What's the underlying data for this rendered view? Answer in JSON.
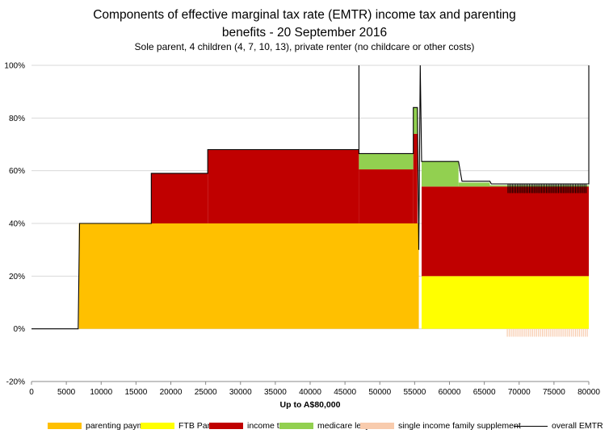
{
  "chart_data": {
    "type": "area",
    "title_line1": "Components of effective marginal tax rate (EMTR) income tax and parenting",
    "title_line2": "benefits - 20 September 2016",
    "subtitle": "Sole parent, 4 children (4, 7, 10, 13), private renter (no childcare or other costs)",
    "xlabel": "Up to A$80,000",
    "ylabel": "",
    "xlim": [
      0,
      80000
    ],
    "ylim": [
      -20,
      100
    ],
    "x_ticks": [
      "0",
      "5000",
      "10000",
      "15000",
      "20000",
      "25000",
      "30000",
      "35000",
      "40000",
      "45000",
      "50000",
      "55000",
      "60000",
      "65000",
      "70000",
      "75000",
      "80000"
    ],
    "y_ticks": [
      "-20%",
      "0%",
      "20%",
      "40%",
      "60%",
      "80%",
      "100%"
    ],
    "y_tick_values": [
      -20,
      0,
      20,
      40,
      60,
      80,
      100
    ],
    "gridlines": "horizontal",
    "legend_position": "bottom",
    "series": [
      {
        "name": "parenting payment",
        "color": "#FFC000",
        "segments": [
          {
            "x": [
              6800,
              55600
            ],
            "values": [
              40,
              40
            ]
          }
        ]
      },
      {
        "name": "FTB Part A",
        "color": "#FFFF00",
        "segments": [
          {
            "x": [
              56000,
              80000
            ],
            "values": [
              20,
              20
            ]
          }
        ]
      },
      {
        "name": "income tax",
        "color": "#C00000",
        "segments": [
          {
            "x": [
              17200,
              25300
            ],
            "values": [
              19,
              19
            ]
          },
          {
            "x": [
              25300,
              47000
            ],
            "values": [
              28,
              28
            ]
          },
          {
            "x": [
              47000,
              54800
            ],
            "values": [
              20.5,
              20.5
            ]
          },
          {
            "x": [
              54800,
              55400
            ],
            "values": [
              34,
              34
            ]
          },
          {
            "x": [
              56000,
              80000
            ],
            "values": [
              34,
              34
            ]
          }
        ]
      },
      {
        "name": "medicare levy",
        "color": "#92D050",
        "segments": [
          {
            "x": [
              47000,
              54800
            ],
            "values": [
              6,
              6
            ]
          },
          {
            "x": [
              54800,
              55400
            ],
            "values": [
              10,
              10
            ]
          },
          {
            "x": [
              56000,
              61300
            ],
            "values": [
              9.5,
              9.5
            ]
          },
          {
            "x": [
              61300,
              65800
            ],
            "values": [
              1.5,
              1.5
            ]
          },
          {
            "x": [
              65800,
              80000
            ],
            "values": [
              0.5,
              0.5
            ]
          }
        ]
      },
      {
        "name": "single income family supplement",
        "color": "#F8CBAD",
        "segments": [
          {
            "x": [
              68300,
              80000
            ],
            "values": [
              -3,
              -3
            ]
          }
        ]
      },
      {
        "name": "overall EMTR",
        "color": "#000000",
        "points": [
          [
            0,
            0
          ],
          [
            6700,
            0
          ],
          [
            6900,
            40
          ],
          [
            17200,
            40
          ],
          [
            17200,
            59
          ],
          [
            25300,
            59
          ],
          [
            25300,
            68
          ],
          [
            47000,
            68
          ],
          [
            47000,
            100
          ],
          [
            47000,
            66.5
          ],
          [
            54800,
            66.5
          ],
          [
            54800,
            84
          ],
          [
            55400,
            84
          ],
          [
            55600,
            30
          ],
          [
            55800,
            100
          ],
          [
            56000,
            63.5
          ],
          [
            61300,
            63.5
          ],
          [
            61800,
            56
          ],
          [
            65800,
            56
          ],
          [
            66000,
            55
          ],
          [
            80000,
            55
          ],
          [
            80000,
            100
          ]
        ]
      }
    ]
  }
}
